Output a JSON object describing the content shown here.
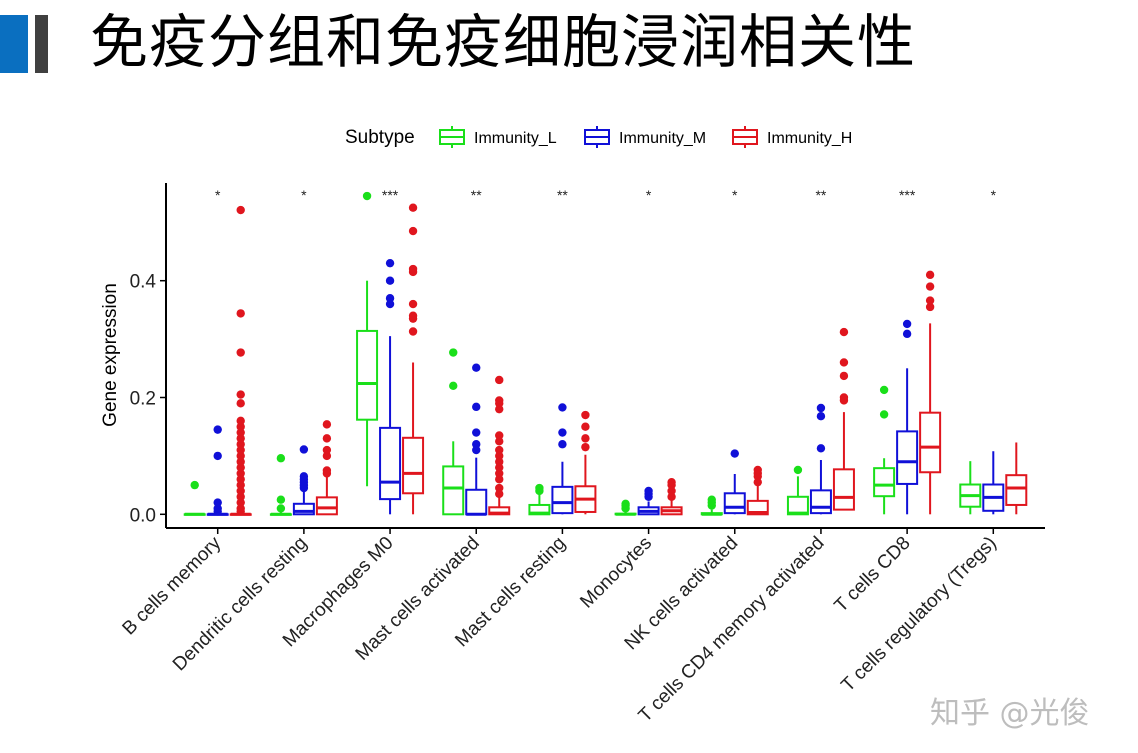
{
  "header": {
    "title": "免疫分组和免疫细胞浸润相关性",
    "accent_colors": [
      "#0a6fc0",
      "#404040"
    ]
  },
  "watermark": "知乎 @光俊",
  "chart_data": {
    "type": "boxplot",
    "ylabel": "Gene expression",
    "xlabel": "",
    "ylim": [
      0,
      0.56
    ],
    "yticks": [
      0.0,
      0.2,
      0.4
    ],
    "ytick_labels": [
      "0.0",
      "0.2",
      "0.4"
    ],
    "grid": false,
    "legend": {
      "title": "Subtype",
      "position": "top"
    },
    "categories": [
      "B cells memory",
      "Dendritic cells resting",
      "Macrophages M0",
      "Mast cells activated",
      "Mast cells resting",
      "Monocytes",
      "NK cells activated",
      "T cells CD4 memory activated",
      "T cells CD8",
      "T cells regulatory (Tregs)"
    ],
    "significance": [
      "*",
      "*",
      "***",
      "**",
      "**",
      "*",
      "*",
      "**",
      "***",
      "*"
    ],
    "series": [
      {
        "name": "Immunity_L",
        "color": "#1adf1a",
        "boxes": [
          {
            "min": 0,
            "q1": 0,
            "median": 0,
            "q3": 0,
            "max": 0,
            "outliers": [
              0.05
            ]
          },
          {
            "min": 0,
            "q1": 0,
            "median": 0,
            "q3": 0,
            "max": 0.005,
            "outliers": [
              0.01,
              0.025,
              0.096
            ]
          },
          {
            "min": 0.048,
            "q1": 0.162,
            "median": 0.224,
            "q3": 0.314,
            "max": 0.4,
            "outliers": [
              0.545
            ]
          },
          {
            "min": 0,
            "q1": 0,
            "median": 0.045,
            "q3": 0.082,
            "max": 0.125,
            "outliers": [
              0.22,
              0.277
            ]
          },
          {
            "min": 0,
            "q1": 0,
            "median": 0.002,
            "q3": 0.016,
            "max": 0.035,
            "outliers": [
              0.04,
              0.045
            ]
          },
          {
            "min": 0,
            "q1": 0,
            "median": 0,
            "q3": 0.001,
            "max": 0.005,
            "outliers": [
              0.01,
              0.015,
              0.018
            ]
          },
          {
            "min": 0,
            "q1": 0,
            "median": 0,
            "q3": 0.002,
            "max": 0.008,
            "outliers": [
              0.015,
              0.02,
              0.025
            ]
          },
          {
            "min": 0,
            "q1": 0,
            "median": 0.002,
            "q3": 0.03,
            "max": 0.065,
            "outliers": [
              0.076
            ]
          },
          {
            "min": 0,
            "q1": 0.031,
            "median": 0.05,
            "q3": 0.079,
            "max": 0.096,
            "outliers": [
              0.171,
              0.213
            ]
          },
          {
            "min": 0,
            "q1": 0.013,
            "median": 0.032,
            "q3": 0.051,
            "max": 0.091,
            "outliers": []
          }
        ]
      },
      {
        "name": "Immunity_M",
        "color": "#1010d8",
        "boxes": [
          {
            "min": 0,
            "q1": 0,
            "median": 0,
            "q3": 0,
            "max": 0,
            "outliers": [
              0.005,
              0.01,
              0.02,
              0.1,
              0.145
            ]
          },
          {
            "min": 0,
            "q1": 0,
            "median": 0.005,
            "q3": 0.018,
            "max": 0.04,
            "outliers": [
              0.045,
              0.05,
              0.055,
              0.06,
              0.065,
              0.111
            ]
          },
          {
            "min": 0,
            "q1": 0.026,
            "median": 0.055,
            "q3": 0.148,
            "max": 0.305,
            "outliers": [
              0.36,
              0.37,
              0.4,
              0.43
            ]
          },
          {
            "min": 0,
            "q1": 0,
            "median": 0,
            "q3": 0.042,
            "max": 0.097,
            "outliers": [
              0.11,
              0.12,
              0.14,
              0.184,
              0.251
            ]
          },
          {
            "min": 0,
            "q1": 0.002,
            "median": 0.02,
            "q3": 0.047,
            "max": 0.09,
            "outliers": [
              0.12,
              0.14,
              0.183
            ]
          },
          {
            "min": 0,
            "q1": 0,
            "median": 0.005,
            "q3": 0.012,
            "max": 0.022,
            "outliers": [
              0.03,
              0.035,
              0.04
            ]
          },
          {
            "min": 0,
            "q1": 0.002,
            "median": 0.012,
            "q3": 0.036,
            "max": 0.069,
            "outliers": [
              0.104
            ]
          },
          {
            "min": 0,
            "q1": 0.002,
            "median": 0.012,
            "q3": 0.041,
            "max": 0.093,
            "outliers": [
              0.113,
              0.168,
              0.182
            ]
          },
          {
            "min": 0,
            "q1": 0.052,
            "median": 0.09,
            "q3": 0.142,
            "max": 0.25,
            "outliers": [
              0.309,
              0.326
            ]
          },
          {
            "min": 0,
            "q1": 0.006,
            "median": 0.029,
            "q3": 0.051,
            "max": 0.108,
            "outliers": []
          }
        ]
      },
      {
        "name": "Immunity_H",
        "color": "#e0161e",
        "boxes": [
          {
            "min": 0,
            "q1": 0,
            "median": 0,
            "q3": 0,
            "max": 0,
            "outliers": [
              0.005,
              0.01,
              0.02,
              0.03,
              0.04,
              0.05,
              0.06,
              0.07,
              0.08,
              0.09,
              0.1,
              0.11,
              0.12,
              0.13,
              0.14,
              0.15,
              0.16,
              0.19,
              0.205,
              0.277,
              0.344,
              0.521
            ]
          },
          {
            "min": 0,
            "q1": 0,
            "median": 0.011,
            "q3": 0.029,
            "max": 0.065,
            "outliers": [
              0.07,
              0.075,
              0.1,
              0.11,
              0.13,
              0.154
            ]
          },
          {
            "min": 0,
            "q1": 0.036,
            "median": 0.07,
            "q3": 0.131,
            "max": 0.26,
            "outliers": [
              0.313,
              0.335,
              0.34,
              0.36,
              0.415,
              0.42,
              0.485,
              0.525
            ]
          },
          {
            "min": 0,
            "q1": 0,
            "median": 0.002,
            "q3": 0.012,
            "max": 0.03,
            "outliers": [
              0.035,
              0.045,
              0.06,
              0.07,
              0.08,
              0.09,
              0.1,
              0.11,
              0.125,
              0.135,
              0.18,
              0.19,
              0.195,
              0.23
            ]
          },
          {
            "min": 0,
            "q1": 0.004,
            "median": 0.026,
            "q3": 0.048,
            "max": 0.102,
            "outliers": [
              0.115,
              0.13,
              0.15,
              0.17
            ]
          },
          {
            "min": 0,
            "q1": 0,
            "median": 0.006,
            "q3": 0.012,
            "max": 0.025,
            "outliers": [
              0.03,
              0.04,
              0.05,
              0.055
            ]
          },
          {
            "min": 0,
            "q1": 0,
            "median": 0.003,
            "q3": 0.023,
            "max": 0.05,
            "outliers": [
              0.055,
              0.065,
              0.07,
              0.076
            ]
          },
          {
            "min": 0.008,
            "q1": 0.008,
            "median": 0.029,
            "q3": 0.077,
            "max": 0.175,
            "outliers": [
              0.195,
              0.2,
              0.237,
              0.26,
              0.312
            ]
          },
          {
            "min": 0,
            "q1": 0.072,
            "median": 0.115,
            "q3": 0.174,
            "max": 0.327,
            "outliers": [
              0.355,
              0.366,
              0.39,
              0.41
            ]
          },
          {
            "min": 0,
            "q1": 0.016,
            "median": 0.045,
            "q3": 0.067,
            "max": 0.123,
            "outliers": []
          }
        ]
      }
    ]
  }
}
